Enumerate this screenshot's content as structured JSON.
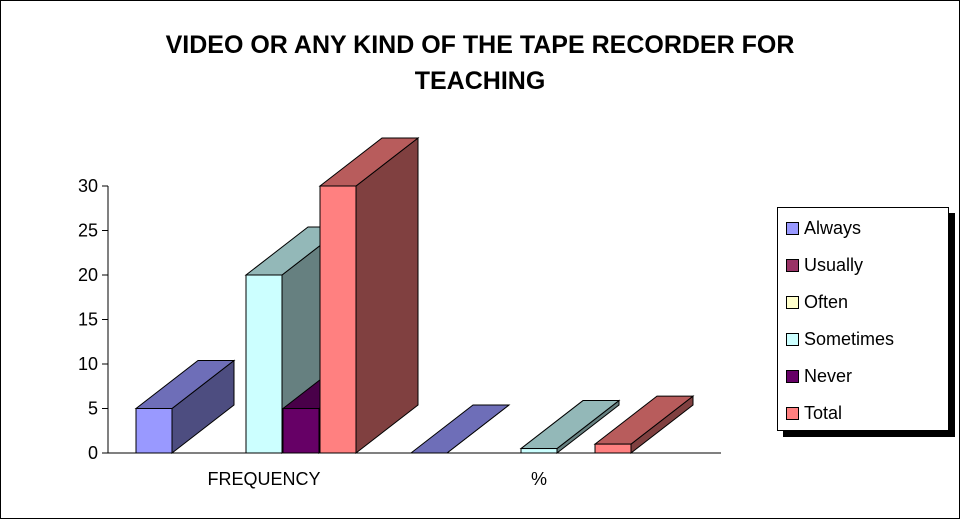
{
  "chart_data": {
    "type": "bar",
    "title": "VIDEO OR ANY KIND OF THE TAPE RECORDER FOR\nTEACHING",
    "categories": [
      "FREQUENCY",
      "%"
    ],
    "series": [
      {
        "name": "Always",
        "values": [
          5,
          0
        ],
        "color": "#9999ff"
      },
      {
        "name": "Usually",
        "values": [
          0,
          0
        ],
        "color": "#993366"
      },
      {
        "name": "Often",
        "values": [
          0,
          0
        ],
        "color": "#ffffcc"
      },
      {
        "name": "Sometimes",
        "values": [
          20,
          0.5
        ],
        "color": "#ccffff"
      },
      {
        "name": "Never",
        "values": [
          5,
          0
        ],
        "color": "#660066"
      },
      {
        "name": "Total",
        "values": [
          30,
          1
        ],
        "color": "#ff8080"
      }
    ],
    "yticks": [
      0,
      5,
      10,
      15,
      20,
      25,
      30
    ],
    "ylim": [
      0,
      30
    ],
    "legend": "right",
    "grid": false
  }
}
